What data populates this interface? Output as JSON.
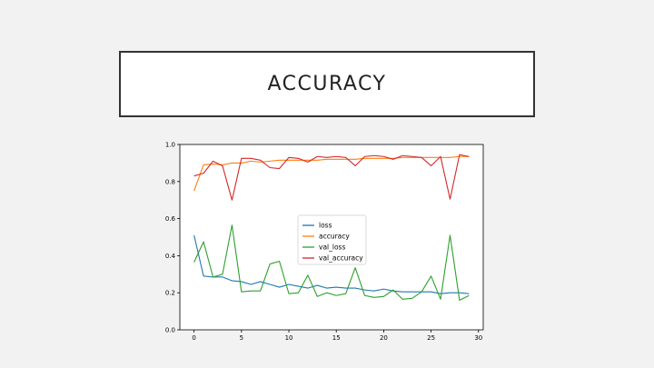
{
  "slide": {
    "title": "ACCURACY"
  },
  "colors": {
    "loss": "#1f77b4",
    "accuracy": "#ff7f0e",
    "val_loss": "#2ca02c",
    "val_accuracy": "#d62728"
  },
  "chart_data": {
    "type": "line",
    "title": "",
    "xlabel": "",
    "ylabel": "",
    "xlim": [
      -1.5,
      30.5
    ],
    "ylim": [
      0.0,
      1.0
    ],
    "x_ticks": [
      0,
      5,
      10,
      15,
      20,
      25,
      30
    ],
    "y_ticks": [
      0.0,
      0.2,
      0.4,
      0.6,
      0.8,
      1.0
    ],
    "grid": false,
    "legend_position": "center",
    "x": [
      0,
      1,
      2,
      3,
      4,
      5,
      6,
      7,
      8,
      9,
      10,
      11,
      12,
      13,
      14,
      15,
      16,
      17,
      18,
      19,
      20,
      21,
      22,
      23,
      24,
      25,
      26,
      27,
      28,
      29
    ],
    "series": [
      {
        "name": "loss",
        "values": [
          0.51,
          0.29,
          0.285,
          0.285,
          0.265,
          0.26,
          0.245,
          0.26,
          0.245,
          0.23,
          0.245,
          0.235,
          0.225,
          0.24,
          0.225,
          0.23,
          0.225,
          0.225,
          0.215,
          0.21,
          0.22,
          0.21,
          0.205,
          0.205,
          0.205,
          0.205,
          0.195,
          0.2,
          0.2,
          0.195
        ]
      },
      {
        "name": "accuracy",
        "values": [
          0.75,
          0.89,
          0.895,
          0.89,
          0.9,
          0.9,
          0.91,
          0.905,
          0.91,
          0.915,
          0.915,
          0.915,
          0.915,
          0.915,
          0.92,
          0.92,
          0.92,
          0.92,
          0.925,
          0.925,
          0.925,
          0.925,
          0.93,
          0.93,
          0.93,
          0.93,
          0.93,
          0.93,
          0.935,
          0.935
        ]
      },
      {
        "name": "val_loss",
        "values": [
          0.365,
          0.475,
          0.285,
          0.3,
          0.565,
          0.205,
          0.21,
          0.21,
          0.355,
          0.37,
          0.195,
          0.2,
          0.295,
          0.18,
          0.2,
          0.185,
          0.195,
          0.335,
          0.185,
          0.175,
          0.18,
          0.215,
          0.165,
          0.17,
          0.205,
          0.29,
          0.165,
          0.51,
          0.16,
          0.185
        ]
      },
      {
        "name": "val_accuracy",
        "values": [
          0.83,
          0.845,
          0.91,
          0.885,
          0.7,
          0.925,
          0.925,
          0.915,
          0.875,
          0.87,
          0.93,
          0.925,
          0.905,
          0.935,
          0.93,
          0.935,
          0.93,
          0.885,
          0.935,
          0.94,
          0.935,
          0.92,
          0.94,
          0.935,
          0.93,
          0.885,
          0.935,
          0.705,
          0.945,
          0.935
        ]
      }
    ]
  }
}
